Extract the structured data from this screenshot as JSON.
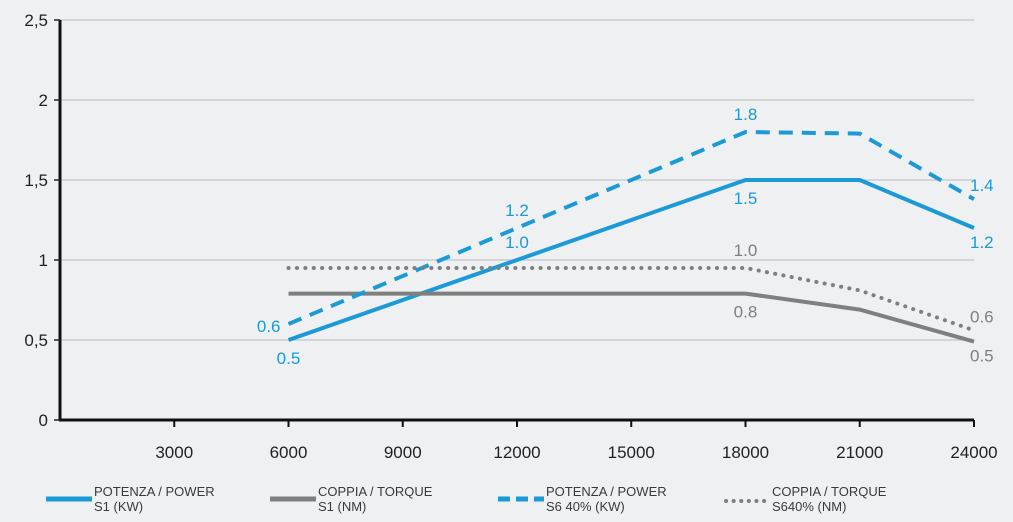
{
  "chart_data": {
    "type": "line",
    "xlim": [
      0,
      24000
    ],
    "ylim": [
      0,
      2.5
    ],
    "x_ticks": [
      3000,
      6000,
      9000,
      12000,
      15000,
      18000,
      21000,
      24000
    ],
    "x_tick_labels": [
      "3000",
      "6000",
      "9000",
      "12000",
      "15000",
      "18000",
      "21000",
      "24000"
    ],
    "y_ticks": [
      0,
      0.5,
      1,
      1.5,
      2,
      2.5
    ],
    "y_tick_labels": [
      "0",
      "0,5",
      "1",
      "1,5",
      "2",
      "2,5"
    ],
    "grid": "horizontal",
    "series": [
      {
        "key": "s1kw",
        "name_line1": "POTENZA / POWER",
        "name_line2": "S1 (KW)",
        "color": "#1b9ad6",
        "style": "solid",
        "x": [
          6000,
          12000,
          18000,
          21000,
          24000
        ],
        "y": [
          0.5,
          1.0,
          1.5,
          1.5,
          1.2
        ]
      },
      {
        "key": "s1nm",
        "name_line1": "COPPIA / TORQUE",
        "name_line2": "S1 (NM)",
        "color": "#7f7f7f",
        "style": "solid",
        "x": [
          6000,
          18000,
          21000,
          24000
        ],
        "y": [
          0.79,
          0.79,
          0.69,
          0.49
        ]
      },
      {
        "key": "s6kw",
        "name_line1": "POTENZA / POWER",
        "name_line2": "S6 40% (KW)",
        "color": "#1b9ad6",
        "style": "dashed",
        "x": [
          6000,
          12000,
          18000,
          21000,
          24000
        ],
        "y": [
          0.6,
          1.2,
          1.8,
          1.79,
          1.38
        ]
      },
      {
        "key": "s6nm",
        "name_line1": "COPPIA / TORQUE",
        "name_line2": "S640% (NM)",
        "color": "#7f7f7f",
        "style": "dotted",
        "x": [
          6000,
          18000,
          21000,
          24000
        ],
        "y": [
          0.95,
          0.95,
          0.81,
          0.56
        ]
      }
    ],
    "annotations": [
      {
        "text": "0.6",
        "x": 6000,
        "y": 0.6,
        "color": "#1b9ad6",
        "pos": "left-below"
      },
      {
        "text": "0.5",
        "x": 6000,
        "y": 0.5,
        "color": "#1b9ad6",
        "pos": "below"
      },
      {
        "text": "1.2",
        "x": 12000,
        "y": 1.2,
        "color": "#1b9ad6",
        "pos": "above"
      },
      {
        "text": "1.0",
        "x": 12000,
        "y": 1.0,
        "color": "#1b9ad6",
        "pos": "above"
      },
      {
        "text": "1.8",
        "x": 18000,
        "y": 1.8,
        "color": "#1b9ad6",
        "pos": "above"
      },
      {
        "text": "1.5",
        "x": 18000,
        "y": 1.5,
        "color": "#1b9ad6",
        "pos": "below"
      },
      {
        "text": "1.0",
        "x": 18000,
        "y": 0.95,
        "color": "#7f7f7f",
        "pos": "above"
      },
      {
        "text": "0.8",
        "x": 18000,
        "y": 0.79,
        "color": "#7f7f7f",
        "pos": "below"
      },
      {
        "text": "1.4",
        "x": 24000,
        "y": 1.38,
        "color": "#1b9ad6",
        "pos": "right-above"
      },
      {
        "text": "1.2",
        "x": 24000,
        "y": 1.2,
        "color": "#1b9ad6",
        "pos": "right-below"
      },
      {
        "text": "0.6",
        "x": 24000,
        "y": 0.56,
        "color": "#7f7f7f",
        "pos": "right-above"
      },
      {
        "text": "0.5",
        "x": 24000,
        "y": 0.49,
        "color": "#7f7f7f",
        "pos": "right-below"
      }
    ]
  }
}
